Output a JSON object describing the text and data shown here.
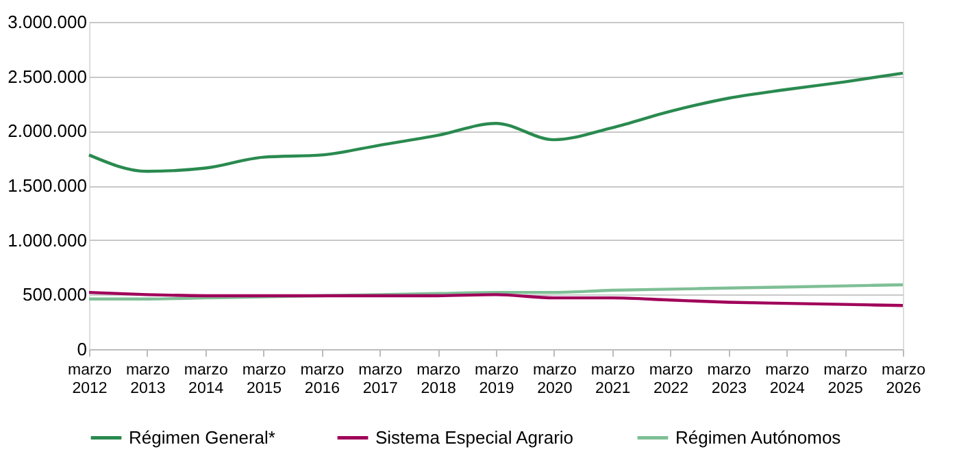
{
  "chart_data": {
    "type": "line",
    "categories": [
      "marzo 2012",
      "marzo 2013",
      "marzo 2014",
      "marzo 2015",
      "marzo 2016",
      "marzo 2017",
      "marzo 2018",
      "marzo 2019",
      "marzo 2020",
      "marzo 2021",
      "marzo 2022",
      "marzo 2023",
      "marzo 2024",
      "marzo 2025",
      "marzo 2026"
    ],
    "series": [
      {
        "name": "Régimen General*",
        "color": "#2a8a4f",
        "values": [
          1780000,
          1630000,
          1660000,
          1760000,
          1780000,
          1870000,
          1960000,
          2070000,
          1920000,
          2030000,
          2180000,
          2300000,
          2380000,
          2450000,
          2530000
        ]
      },
      {
        "name": "Sistema Especial Agrario",
        "color": "#a0005a",
        "values": [
          520000,
          500000,
          490000,
          490000,
          490000,
          490000,
          490000,
          500000,
          470000,
          470000,
          450000,
          430000,
          420000,
          410000,
          400000
        ]
      },
      {
        "name": "Régimen Autónomos",
        "color": "#7fbf96",
        "values": [
          460000,
          460000,
          470000,
          480000,
          490000,
          500000,
          510000,
          520000,
          520000,
          540000,
          550000,
          560000,
          570000,
          580000,
          590000
        ]
      }
    ],
    "ylim": [
      0,
      3000000
    ],
    "yticks": [
      {
        "value": 0,
        "label": "0"
      },
      {
        "value": 500000,
        "label": "500.000"
      },
      {
        "value": 1000000,
        "label": "1.000.000"
      },
      {
        "value": 1500000,
        "label": "1.500.000"
      },
      {
        "value": 2000000,
        "label": "2.000.000"
      },
      {
        "value": 2500000,
        "label": "2.500.000"
      },
      {
        "value": 3000000,
        "label": "3.000.000"
      }
    ],
    "grid": "y",
    "legend": "bottom",
    "marker": "none",
    "line_style": "solid"
  }
}
